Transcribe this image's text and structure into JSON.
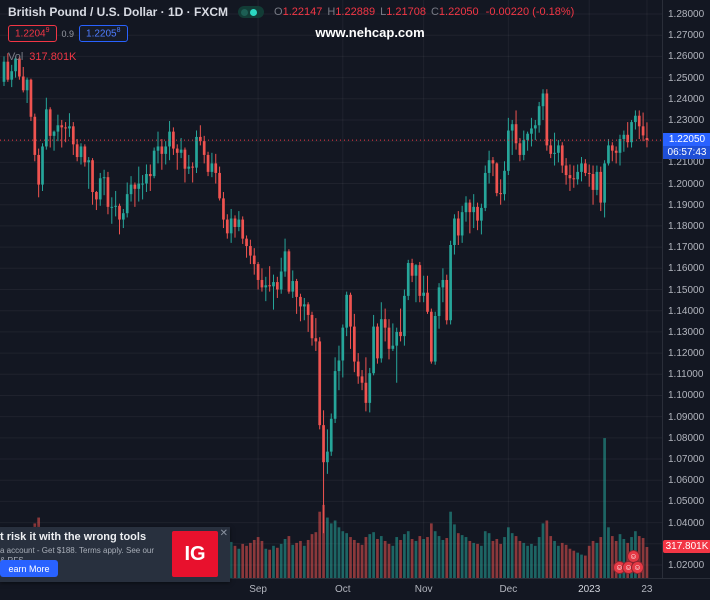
{
  "header": {
    "symbol_title": "British Pound / U.S. Dollar · 1D · FXCM",
    "ohlc": {
      "o_label": "O",
      "o": "1.22147",
      "h_label": "H",
      "h": "1.22889",
      "l_label": "L",
      "l": "1.21708",
      "c_label": "C",
      "c": "1.22050",
      "change": "-0.00220 (-0.18%)"
    },
    "sell": {
      "main": "1.2204",
      "sup": "9"
    },
    "buy": {
      "main": "1.2205",
      "sup": "8"
    },
    "spread": "0.9",
    "watermark": "www.nehcap.com",
    "vol_label": "Vol",
    "vol_value": "317.801K"
  },
  "price_axis": {
    "last_price_badge": {
      "price": "1.22050",
      "countdown": "06:57:43"
    },
    "volume_badge": "317.801K"
  },
  "ad": {
    "headline": "t risk it with the wrong tools",
    "body_line1": "a account - Get $188. Terms apply. See our",
    "body_line2": "& RFS.",
    "cta": "earn More",
    "logo_text": "IG",
    "close": "✕"
  },
  "reactions": {
    "face": "☺"
  },
  "chart_data": {
    "type": "candlestick+volume",
    "title": "British Pound / U.S. Dollar",
    "interval": "1D",
    "exchange": "FXCM",
    "last_price": 1.2205,
    "last_volume_k": 317.801,
    "colors": {
      "up": "#26a69a",
      "down": "#ef5350",
      "vol_up": "rgba(38,166,154,0.55)",
      "vol_down": "rgba(239,83,80,0.55)",
      "last_price_line": "#f23645",
      "grid": "rgba(255,255,255,0.05)",
      "badge_blue": "#2962ff",
      "badge_red": "#f23645"
    },
    "y_axis": {
      "min": 1.02,
      "max": 1.28,
      "step": 0.01,
      "labels": [
        "1.28000",
        "1.27000",
        "1.26000",
        "1.25000",
        "1.24000",
        "1.23000",
        "1.22000",
        "1.21000",
        "1.20000",
        "1.19000",
        "1.18000",
        "1.17000",
        "1.16000",
        "1.15000",
        "1.14000",
        "1.13000",
        "1.12000",
        "1.11000",
        "1.10000",
        "1.09000",
        "1.08000",
        "1.07000",
        "1.06000",
        "1.05000",
        "1.04000",
        "1.03000",
        "1.02000"
      ]
    },
    "x_ticks": [
      {
        "text": "Sep",
        "index": 66
      },
      {
        "text": "Oct",
        "index": 88
      },
      {
        "text": "Nov",
        "index": 109
      },
      {
        "text": "Dec",
        "index": 131
      },
      {
        "text": "2023",
        "index": 152
      },
      {
        "text": "23",
        "index": 167
      }
    ],
    "candles": [
      [
        1.248,
        1.26,
        1.246,
        1.2575,
        420
      ],
      [
        1.2575,
        1.2615,
        1.248,
        1.249,
        385
      ],
      [
        1.249,
        1.256,
        1.2455,
        1.253,
        310
      ],
      [
        1.253,
        1.26,
        1.25,
        1.259,
        295
      ],
      [
        1.259,
        1.26,
        1.249,
        1.2505,
        340
      ],
      [
        1.2505,
        1.255,
        1.243,
        1.244,
        330
      ],
      [
        1.244,
        1.25,
        1.238,
        1.249,
        360
      ],
      [
        1.249,
        1.2495,
        1.2295,
        1.2315,
        510
      ],
      [
        1.2315,
        1.233,
        1.2105,
        1.2135,
        560
      ],
      [
        1.2135,
        1.2165,
        1.1935,
        1.1995,
        620
      ],
      [
        1.1995,
        1.219,
        1.1965,
        1.2175,
        480
      ],
      [
        1.2175,
        1.2405,
        1.216,
        1.235,
        455
      ],
      [
        1.235,
        1.236,
        1.217,
        1.2225,
        390
      ],
      [
        1.2225,
        1.225,
        1.2155,
        1.2245,
        340
      ],
      [
        1.2245,
        1.2325,
        1.22,
        1.2275,
        310
      ],
      [
        1.2275,
        1.23,
        1.217,
        1.2265,
        305
      ],
      [
        1.2265,
        1.229,
        1.2195,
        1.226,
        280
      ],
      [
        1.226,
        1.2332,
        1.222,
        1.227,
        260
      ],
      [
        1.227,
        1.229,
        1.2135,
        1.2185,
        300
      ],
      [
        1.2185,
        1.221,
        1.2105,
        1.2125,
        350
      ],
      [
        1.2125,
        1.219,
        1.209,
        1.2175,
        330
      ],
      [
        1.2175,
        1.2185,
        1.208,
        1.21,
        290
      ],
      [
        1.21,
        1.2125,
        1.1975,
        1.211,
        310
      ],
      [
        1.211,
        1.212,
        1.19,
        1.196,
        420
      ],
      [
        1.196,
        1.1965,
        1.1875,
        1.1925,
        380
      ],
      [
        1.1925,
        1.205,
        1.1895,
        1.2025,
        340
      ],
      [
        1.2025,
        1.2065,
        1.1945,
        1.203,
        300
      ],
      [
        1.203,
        1.2055,
        1.1855,
        1.189,
        390
      ],
      [
        1.189,
        1.1935,
        1.181,
        1.189,
        360
      ],
      [
        1.189,
        1.1965,
        1.1845,
        1.1895,
        330
      ],
      [
        1.1895,
        1.1905,
        1.176,
        1.183,
        400
      ],
      [
        1.183,
        1.188,
        1.179,
        1.186,
        320
      ],
      [
        1.186,
        1.2005,
        1.184,
        1.195,
        350
      ],
      [
        1.195,
        1.2035,
        1.1915,
        1.1995,
        330
      ],
      [
        1.1995,
        1.2005,
        1.189,
        1.1975,
        300
      ],
      [
        1.1975,
        1.208,
        1.1915,
        1.2,
        360
      ],
      [
        1.2,
        1.204,
        1.1925,
        1.2,
        280
      ],
      [
        1.2,
        1.209,
        1.196,
        1.2045,
        290
      ],
      [
        1.2045,
        1.209,
        1.1965,
        1.2035,
        270
      ],
      [
        1.2035,
        1.217,
        1.2025,
        1.2155,
        330
      ],
      [
        1.2155,
        1.2245,
        1.2095,
        1.2175,
        380
      ],
      [
        1.2175,
        1.221,
        1.2065,
        1.214,
        340
      ],
      [
        1.214,
        1.22,
        1.209,
        1.2175,
        300
      ],
      [
        1.2175,
        1.2295,
        1.211,
        1.2245,
        360
      ],
      [
        1.2245,
        1.2265,
        1.2135,
        1.2165,
        330
      ],
      [
        1.2165,
        1.2185,
        1.2065,
        1.2145,
        310
      ],
      [
        1.2145,
        1.2215,
        1.212,
        1.216,
        280
      ],
      [
        1.216,
        1.217,
        1.2005,
        1.207,
        300
      ],
      [
        1.207,
        1.2135,
        1.2045,
        1.208,
        260
      ],
      [
        1.208,
        1.21,
        1.2005,
        1.2075,
        270
      ],
      [
        1.2075,
        1.225,
        1.205,
        1.222,
        420
      ],
      [
        1.222,
        1.2275,
        1.218,
        1.22,
        350
      ],
      [
        1.22,
        1.2225,
        1.2095,
        1.2135,
        310
      ],
      [
        1.2135,
        1.215,
        1.2035,
        1.2055,
        330
      ],
      [
        1.2055,
        1.2145,
        1.203,
        1.2095,
        300
      ],
      [
        1.2095,
        1.214,
        1.2,
        1.205,
        290
      ],
      [
        1.205,
        1.208,
        1.192,
        1.193,
        380
      ],
      [
        1.193,
        1.196,
        1.179,
        1.183,
        430
      ],
      [
        1.183,
        1.1855,
        1.174,
        1.1765,
        410
      ],
      [
        1.1765,
        1.188,
        1.172,
        1.1835,
        370
      ],
      [
        1.1835,
        1.185,
        1.1745,
        1.1795,
        330
      ],
      [
        1.1795,
        1.187,
        1.1775,
        1.183,
        300
      ],
      [
        1.183,
        1.1845,
        1.1715,
        1.174,
        350
      ],
      [
        1.174,
        1.1755,
        1.165,
        1.1705,
        330
      ],
      [
        1.1705,
        1.1735,
        1.162,
        1.166,
        360
      ],
      [
        1.166,
        1.1695,
        1.157,
        1.162,
        390
      ],
      [
        1.162,
        1.163,
        1.15,
        1.1545,
        420
      ],
      [
        1.1545,
        1.16,
        1.149,
        1.151,
        380
      ],
      [
        1.151,
        1.156,
        1.1445,
        1.152,
        300
      ],
      [
        1.152,
        1.161,
        1.149,
        1.1515,
        290
      ],
      [
        1.1515,
        1.157,
        1.1405,
        1.1535,
        330
      ],
      [
        1.1535,
        1.156,
        1.146,
        1.15,
        310
      ],
      [
        1.15,
        1.165,
        1.148,
        1.1585,
        350
      ],
      [
        1.1585,
        1.174,
        1.156,
        1.168,
        400
      ],
      [
        1.168,
        1.169,
        1.148,
        1.149,
        430
      ],
      [
        1.149,
        1.159,
        1.146,
        1.154,
        340
      ],
      [
        1.154,
        1.155,
        1.1385,
        1.1465,
        360
      ],
      [
        1.1465,
        1.148,
        1.135,
        1.142,
        380
      ],
      [
        1.142,
        1.146,
        1.1355,
        1.143,
        330
      ],
      [
        1.143,
        1.144,
        1.13,
        1.138,
        390
      ],
      [
        1.138,
        1.1395,
        1.1235,
        1.127,
        450
      ],
      [
        1.127,
        1.1365,
        1.121,
        1.1255,
        470
      ],
      [
        1.1255,
        1.1275,
        1.084,
        1.086,
        680
      ],
      [
        1.086,
        1.093,
        1.035,
        1.0685,
        750
      ],
      [
        1.0685,
        1.084,
        1.063,
        1.0735,
        620
      ],
      [
        1.0735,
        1.0915,
        1.0715,
        1.089,
        560
      ],
      [
        1.089,
        1.118,
        1.087,
        1.1115,
        590
      ],
      [
        1.1115,
        1.1235,
        1.1025,
        1.1165,
        520
      ],
      [
        1.1165,
        1.1335,
        1.1085,
        1.132,
        480
      ],
      [
        1.132,
        1.149,
        1.128,
        1.1475,
        460
      ],
      [
        1.1475,
        1.1485,
        1.122,
        1.1325,
        420
      ],
      [
        1.1325,
        1.1385,
        1.111,
        1.116,
        390
      ],
      [
        1.116,
        1.12,
        1.1055,
        1.109,
        360
      ],
      [
        1.109,
        1.112,
        1.1025,
        1.106,
        340
      ],
      [
        1.106,
        1.118,
        1.0925,
        1.0965,
        420
      ],
      [
        1.0965,
        1.113,
        1.092,
        1.1105,
        450
      ],
      [
        1.1105,
        1.138,
        1.1095,
        1.1325,
        470
      ],
      [
        1.1325,
        1.134,
        1.115,
        1.1175,
        400
      ],
      [
        1.1175,
        1.144,
        1.1155,
        1.136,
        430
      ],
      [
        1.136,
        1.141,
        1.1255,
        1.132,
        380
      ],
      [
        1.132,
        1.136,
        1.117,
        1.122,
        350
      ],
      [
        1.122,
        1.134,
        1.121,
        1.1235,
        330
      ],
      [
        1.1235,
        1.132,
        1.106,
        1.13,
        420
      ],
      [
        1.13,
        1.141,
        1.1255,
        1.128,
        390
      ],
      [
        1.128,
        1.15,
        1.1235,
        1.147,
        450
      ],
      [
        1.147,
        1.164,
        1.145,
        1.1625,
        480
      ],
      [
        1.1625,
        1.1645,
        1.1535,
        1.1565,
        400
      ],
      [
        1.1565,
        1.162,
        1.144,
        1.1615,
        380
      ],
      [
        1.1615,
        1.163,
        1.144,
        1.147,
        430
      ],
      [
        1.147,
        1.1565,
        1.144,
        1.1485,
        400
      ],
      [
        1.1485,
        1.1565,
        1.1385,
        1.1395,
        420
      ],
      [
        1.1395,
        1.141,
        1.115,
        1.116,
        560
      ],
      [
        1.116,
        1.1395,
        1.1145,
        1.1375,
        480
      ],
      [
        1.1375,
        1.153,
        1.1315,
        1.151,
        430
      ],
      [
        1.151,
        1.16,
        1.144,
        1.1545,
        390
      ],
      [
        1.1545,
        1.157,
        1.1335,
        1.1355,
        410
      ],
      [
        1.1355,
        1.173,
        1.1335,
        1.171,
        680
      ],
      [
        1.171,
        1.1855,
        1.1665,
        1.1835,
        550
      ],
      [
        1.1835,
        1.187,
        1.171,
        1.1755,
        460
      ],
      [
        1.1755,
        1.1895,
        1.172,
        1.1865,
        440
      ],
      [
        1.1865,
        1.194,
        1.182,
        1.191,
        420
      ],
      [
        1.191,
        1.1925,
        1.1765,
        1.1865,
        380
      ],
      [
        1.1865,
        1.195,
        1.179,
        1.189,
        360
      ],
      [
        1.189,
        1.191,
        1.178,
        1.1825,
        350
      ],
      [
        1.1825,
        1.1905,
        1.176,
        1.1885,
        330
      ],
      [
        1.1885,
        1.2085,
        1.187,
        1.205,
        480
      ],
      [
        1.205,
        1.2155,
        1.2,
        1.211,
        460
      ],
      [
        1.211,
        1.2125,
        1.2035,
        1.2095,
        380
      ],
      [
        1.2095,
        1.21,
        1.194,
        1.1955,
        400
      ],
      [
        1.1955,
        1.202,
        1.19,
        1.195,
        350
      ],
      [
        1.195,
        1.2105,
        1.192,
        1.206,
        420
      ],
      [
        1.206,
        1.231,
        1.204,
        1.225,
        520
      ],
      [
        1.225,
        1.23,
        1.2135,
        1.228,
        460
      ],
      [
        1.228,
        1.2345,
        1.216,
        1.219,
        430
      ],
      [
        1.219,
        1.2215,
        1.2105,
        1.2135,
        380
      ],
      [
        1.2135,
        1.225,
        1.211,
        1.2205,
        360
      ],
      [
        1.2205,
        1.2245,
        1.2155,
        1.2235,
        330
      ],
      [
        1.2235,
        1.231,
        1.2175,
        1.226,
        350
      ],
      [
        1.226,
        1.23,
        1.2205,
        1.2275,
        330
      ],
      [
        1.2275,
        1.2385,
        1.224,
        1.2365,
        420
      ],
      [
        1.2365,
        1.2445,
        1.23,
        1.2425,
        560
      ],
      [
        1.2425,
        1.2445,
        1.2155,
        1.218,
        590
      ],
      [
        1.218,
        1.221,
        1.212,
        1.214,
        430
      ],
      [
        1.214,
        1.224,
        1.2085,
        1.2145,
        380
      ],
      [
        1.2145,
        1.2205,
        1.21,
        1.218,
        330
      ],
      [
        1.218,
        1.2195,
        1.205,
        1.2085,
        360
      ],
      [
        1.2085,
        1.212,
        1.1995,
        1.204,
        340
      ],
      [
        1.204,
        1.209,
        1.1965,
        1.2025,
        300
      ],
      [
        1.2025,
        1.2085,
        1.198,
        1.202,
        280
      ],
      [
        1.202,
        1.209,
        1.1995,
        1.2055,
        260
      ],
      [
        1.2055,
        1.2125,
        1.201,
        1.2095,
        240
      ],
      [
        1.2095,
        1.2115,
        1.2035,
        1.205,
        230
      ],
      [
        1.205,
        1.209,
        1.1985,
        1.2045,
        330
      ],
      [
        1.2045,
        1.2085,
        1.19,
        1.197,
        380
      ],
      [
        1.197,
        1.2085,
        1.1945,
        1.2055,
        360
      ],
      [
        1.2055,
        1.208,
        1.187,
        1.191,
        420
      ],
      [
        1.191,
        1.211,
        1.184,
        1.2095,
        1435
      ],
      [
        1.2095,
        1.221,
        1.2085,
        1.218,
        520
      ],
      [
        1.218,
        1.2195,
        1.2105,
        1.2155,
        430
      ],
      [
        1.2155,
        1.2175,
        1.2095,
        1.2145,
        380
      ],
      [
        1.2145,
        1.223,
        1.2085,
        1.221,
        450
      ],
      [
        1.221,
        1.225,
        1.215,
        1.223,
        400
      ],
      [
        1.223,
        1.229,
        1.217,
        1.2195,
        360
      ],
      [
        1.2195,
        1.23,
        1.217,
        1.229,
        420
      ],
      [
        1.229,
        1.2345,
        1.2255,
        1.232,
        480
      ],
      [
        1.232,
        1.2345,
        1.221,
        1.227,
        430
      ],
      [
        1.227,
        1.2335,
        1.22,
        1.2227,
        410
      ],
      [
        1.22147,
        1.22889,
        1.21708,
        1.2205,
        318
      ]
    ]
  }
}
